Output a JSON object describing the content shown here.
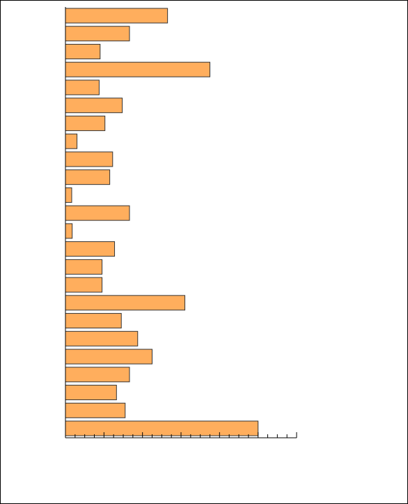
{
  "chart_data": {
    "type": "barh",
    "color": "#ffae5d",
    "values": [
      10.6,
      6.65,
      3.6,
      15.0,
      3.5,
      5.9,
      4.1,
      1.2,
      4.9,
      4.6,
      0.65,
      6.65,
      0.7,
      5.1,
      3.8,
      3.8,
      12.4,
      5.8,
      7.5,
      9.0,
      6.65,
      5.3,
      6.2,
      20.0
    ],
    "xlim": [
      0,
      24
    ],
    "xticks": [
      0,
      1,
      2,
      3,
      4,
      5,
      6,
      7,
      8,
      9,
      10,
      11,
      12,
      13,
      14,
      15,
      16,
      17,
      18,
      19,
      20,
      21,
      22,
      23,
      24
    ],
    "grid": false
  }
}
